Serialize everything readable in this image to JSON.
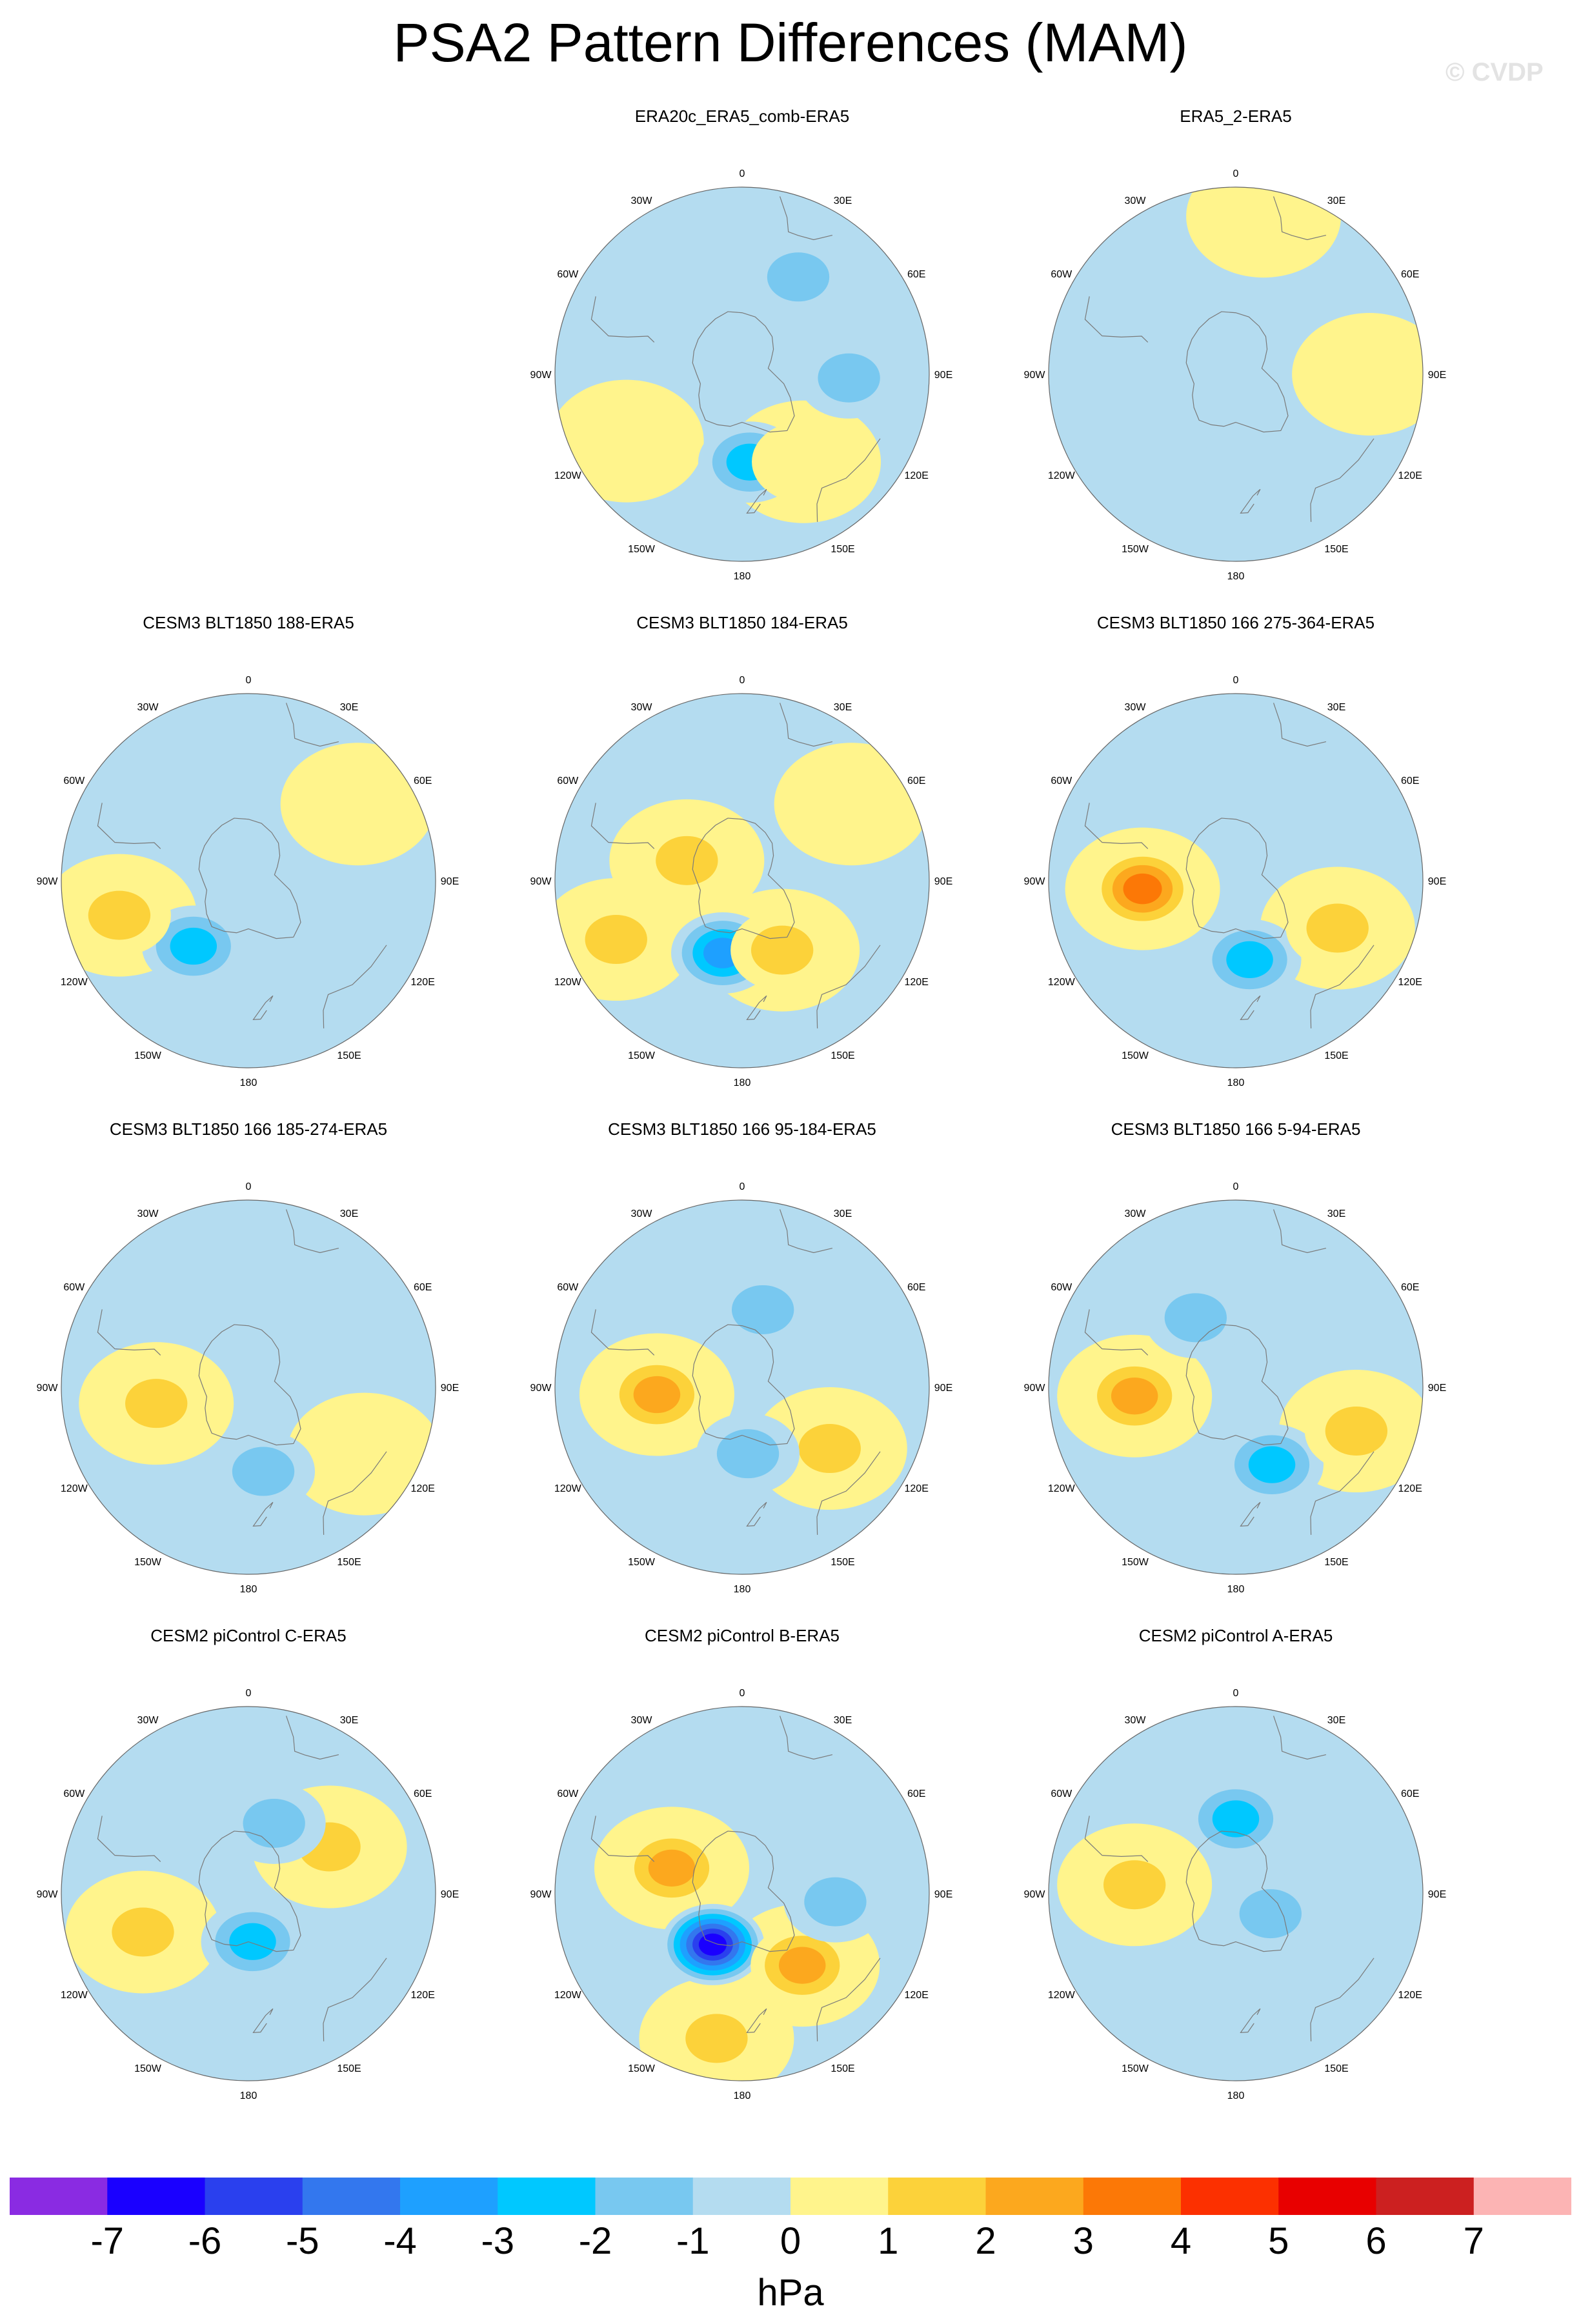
{
  "title": "PSA2 Pattern Differences (MAM)",
  "watermark": "© CVDP",
  "lon_labels": [
    "0",
    "30E",
    "60E",
    "90E",
    "120E",
    "150E",
    "180",
    "150W",
    "120W",
    "90W",
    "60W",
    "30W"
  ],
  "colorbar": {
    "units": "hPa",
    "levels": [
      "-7",
      "-6",
      "-5",
      "-4",
      "-3",
      "-2",
      "-1",
      "0",
      "1",
      "2",
      "3",
      "4",
      "5",
      "6",
      "7"
    ],
    "colors": [
      "#8a2be2",
      "#1a00ff",
      "#2a40ee",
      "#3377ee",
      "#1ea0ff",
      "#00c8ff",
      "#78c8f0",
      "#b4dcf0",
      "#fff48c",
      "#fcd23a",
      "#fca81e",
      "#fc7806",
      "#fc3000",
      "#e80000",
      "#cc2020",
      "#fcb4b4"
    ]
  },
  "chart_data": {
    "type": "map",
    "projection": "south polar stereographic",
    "variable": "sea level pressure difference",
    "units": "hPa",
    "panels": [
      {
        "title": "ERA20c_ERA5_comb-ERA5",
        "min_value": -3,
        "max_value": 1,
        "features": [
          {
            "lon": 175,
            "lat": -57,
            "value": -2.6
          },
          {
            "lon": 30,
            "lat": -48,
            "value": -1.7
          },
          {
            "lon": 92,
            "lat": -50,
            "value": -1.8
          },
          {
            "lon": -120,
            "lat": -40,
            "value": 0.5
          },
          {
            "lon": 145,
            "lat": -50,
            "value": 0.5
          }
        ]
      },
      {
        "title": "ERA5_2-ERA5",
        "min_value": -1,
        "max_value": 1,
        "features": [
          {
            "lon": 10,
            "lat": -30,
            "value": 0.5
          },
          {
            "lon": 170,
            "lat": -55,
            "value": -0.5
          },
          {
            "lon": -140,
            "lat": -35,
            "value": -0.5
          },
          {
            "lon": 90,
            "lat": -40,
            "value": 0.5
          }
        ]
      },
      {
        "title": "CESM3 BLT1850 188-ERA5",
        "min_value": -3,
        "max_value": 2,
        "features": [
          {
            "lon": -140,
            "lat": -58,
            "value": -2.7
          },
          {
            "lon": -105,
            "lat": -40,
            "value": 1.3
          },
          {
            "lon": 55,
            "lat": -40,
            "value": 0.5
          }
        ]
      },
      {
        "title": "CESM3 BLT1850 184-ERA5",
        "min_value": -4,
        "max_value": 2,
        "features": [
          {
            "lon": -165,
            "lat": -62,
            "value": -3.7
          },
          {
            "lon": -115,
            "lat": -38,
            "value": 1.6
          },
          {
            "lon": 150,
            "lat": -60,
            "value": 1.6
          },
          {
            "lon": -70,
            "lat": -68,
            "value": 1.2
          },
          {
            "lon": 55,
            "lat": -40,
            "value": 0.5
          }
        ]
      },
      {
        "title": "CESM3 BLT1850 166 275-364-ERA5",
        "min_value": -3,
        "max_value": 3,
        "features": [
          {
            "lon": -95,
            "lat": -55,
            "value": 3.2
          },
          {
            "lon": 170,
            "lat": -60,
            "value": -2.7
          },
          {
            "lon": 115,
            "lat": -48,
            "value": 1.6
          },
          {
            "lon": 30,
            "lat": -48,
            "value": -0.5
          }
        ]
      },
      {
        "title": "CESM3 BLT1850 166 185-274-ERA5",
        "min_value": -2,
        "max_value": 2,
        "features": [
          {
            "lon": -100,
            "lat": -55,
            "value": 1.6
          },
          {
            "lon": 170,
            "lat": -58,
            "value": -1.8
          },
          {
            "lon": 120,
            "lat": -40,
            "value": 0.5
          }
        ]
      },
      {
        "title": "CESM3 BLT1850 166 95-184-ERA5",
        "min_value": -2,
        "max_value": 3,
        "features": [
          {
            "lon": -95,
            "lat": -58,
            "value": 2.4
          },
          {
            "lon": 125,
            "lat": -50,
            "value": 1.8
          },
          {
            "lon": 15,
            "lat": -60,
            "value": -1.5
          },
          {
            "lon": 175,
            "lat": -65,
            "value": -1.3
          }
        ]
      },
      {
        "title": "CESM3 BLT1850 166 5-94-ERA5",
        "min_value": -3,
        "max_value": 3,
        "features": [
          {
            "lon": -95,
            "lat": -52,
            "value": 2.6
          },
          {
            "lon": 155,
            "lat": -58,
            "value": -2.5
          },
          {
            "lon": 110,
            "lat": -42,
            "value": 1.6
          },
          {
            "lon": -30,
            "lat": -60,
            "value": -1.3
          }
        ]
      },
      {
        "title": "CESM2 piControl C-ERA5",
        "min_value": -3,
        "max_value": 2,
        "features": [
          {
            "lon": 175,
            "lat": -72,
            "value": -2.4
          },
          {
            "lon": -110,
            "lat": -48,
            "value": 1.6
          },
          {
            "lon": 60,
            "lat": -55,
            "value": 1.5
          },
          {
            "lon": 20,
            "lat": -62,
            "value": -1.5
          }
        ]
      },
      {
        "title": "CESM2 piControl B-ERA5",
        "min_value": -7,
        "max_value": 3,
        "features": [
          {
            "lon": -150,
            "lat": -68,
            "value": -6.5
          },
          {
            "lon": -70,
            "lat": -62,
            "value": 2.4
          },
          {
            "lon": 140,
            "lat": -55,
            "value": 2.4
          },
          {
            "lon": -170,
            "lat": -35,
            "value": 1.4
          },
          {
            "lon": 95,
            "lat": -55,
            "value": -1.6
          }
        ]
      },
      {
        "title": "CESM2 piControl A-ERA5",
        "min_value": -3,
        "max_value": 2,
        "features": [
          {
            "lon": 0,
            "lat": -62,
            "value": -2.7
          },
          {
            "lon": 120,
            "lat": -75,
            "value": -1.5
          },
          {
            "lon": -85,
            "lat": -52,
            "value": 1.3
          }
        ]
      }
    ]
  }
}
